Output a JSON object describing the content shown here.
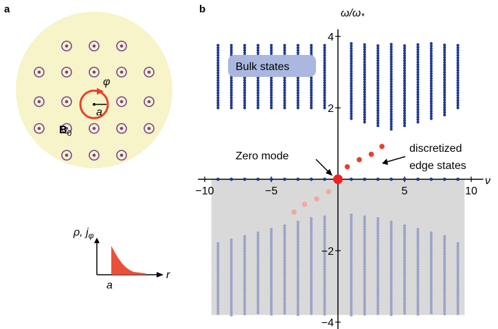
{
  "panel_a": {
    "label": "a",
    "field_label_main": "B",
    "field_label_sub": "0",
    "angle_symbol": "φ",
    "radius_symbol": "a",
    "inset": {
      "ylabel_rho": "ρ, ",
      "ylabel_j": "j",
      "ylabel_j_sub": "φ",
      "xlabel": "r",
      "xmark": "a"
    },
    "colors": {
      "disk": "#f6f4c8",
      "vortex": "#7b3f93",
      "loop": "#e8402a",
      "profile": "#e8503a"
    }
  },
  "panel_b": {
    "label": "b",
    "bulk_label": "Bulk states",
    "zero_mode_label": "Zero mode",
    "edge_label_line1": "discretized",
    "edge_label_line2": "edge states",
    "colors": {
      "bulk_upper": "#1f3a8f",
      "bulk_lower": "#9aa3c8",
      "edge": "#e8402a",
      "edge_faded": "#f0a8a0",
      "zero": "#ee2222",
      "shade": "#d9d9d9",
      "bulk_box": "#aab8e0"
    }
  },
  "chart_data": {
    "type": "scatter",
    "xlabel": "ν",
    "ylabel_main": "ω/ω",
    "ylabel_sub": "*",
    "xlim": [
      -10.5,
      10.5
    ],
    "ylim": [
      -4.2,
      4.2
    ],
    "xticks": [
      -10,
      -5,
      0,
      5,
      10
    ],
    "xtick_labels": [
      "−10",
      "−5",
      "0",
      "5",
      "10"
    ],
    "yticks": [
      -4,
      -2,
      2,
      4
    ],
    "ytick_labels": [
      "−4",
      "−2",
      "2",
      "4"
    ],
    "bulk_columns_nu": [
      -9,
      -8,
      -7,
      -6,
      -5,
      -4,
      -3,
      -2,
      -1,
      1,
      2,
      3,
      4,
      5,
      6,
      7,
      8,
      9
    ],
    "bulk_upper": {
      "name": "Bulk states",
      "bottom": [
        2.0,
        2.0,
        2.0,
        2.0,
        2.0,
        2.0,
        2.0,
        2.0,
        2.0,
        1.7,
        1.6,
        1.5,
        1.4,
        1.5,
        1.6,
        1.7,
        1.8,
        2.0
      ],
      "top": 3.8
    },
    "bulk_lower": {
      "top": [
        -1.8,
        -1.7,
        -1.6,
        -1.5,
        -1.4,
        -1.3,
        -1.2,
        -1.1,
        -1.05,
        -1.0,
        -1.05,
        -1.1,
        -1.2,
        -1.3,
        -1.4,
        -1.5,
        -1.6,
        -1.8
      ],
      "bottom": -3.8
    },
    "zero_band_nu": [
      -9,
      -8,
      -7,
      -6,
      -5,
      -4,
      -3,
      -2,
      -1,
      1,
      2,
      3,
      4,
      5,
      6,
      7,
      8,
      9
    ],
    "edge_states": {
      "nu": [
        0.7,
        1.6,
        2.5,
        3.3
      ],
      "omega": [
        0.35,
        0.55,
        0.7,
        0.92
      ]
    },
    "edge_states_faded": {
      "nu": [
        -3.3,
        -2.5,
        -1.6,
        -0.7
      ],
      "omega": [
        -0.92,
        -0.7,
        -0.55,
        -0.35
      ]
    },
    "zero_mode": {
      "nu": 0,
      "omega": 0
    }
  }
}
